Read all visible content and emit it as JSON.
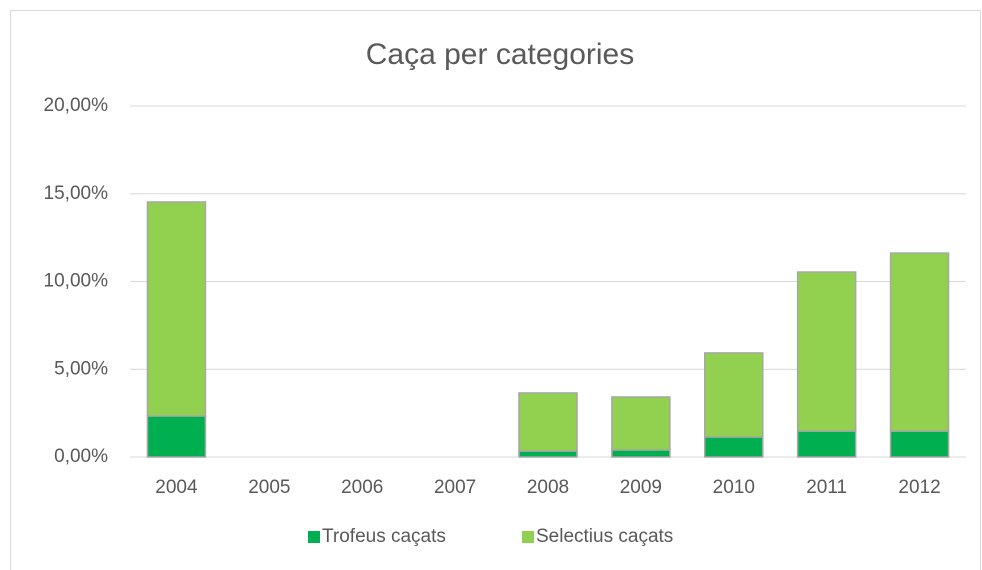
{
  "chart_data": {
    "type": "stacked_bar",
    "title": "Caça per categories",
    "categories": [
      "2004",
      "2005",
      "2006",
      "2007",
      "2008",
      "2009",
      "2010",
      "2011",
      "2012"
    ],
    "series": [
      {
        "name": "Trofeus caçats",
        "color": "#00b050",
        "values": [
          2.34,
          0,
          0,
          0,
          0.34,
          0.4,
          1.14,
          1.48,
          1.48
        ]
      },
      {
        "name": "Selectius caçats",
        "color": "#92d050",
        "values": [
          12.19,
          0,
          0,
          0,
          3.31,
          3.02,
          4.79,
          9.06,
          10.14
        ]
      }
    ],
    "ylim": [
      0,
      20
    ],
    "yticks": [
      {
        "value": 0,
        "label": "0,00%"
      },
      {
        "value": 5,
        "label": "5,00%"
      },
      {
        "value": 10,
        "label": "10,00%"
      },
      {
        "value": 15,
        "label": "15,00%"
      },
      {
        "value": 20,
        "label": "20,00%"
      }
    ],
    "grid": true,
    "legend": "bottom"
  }
}
